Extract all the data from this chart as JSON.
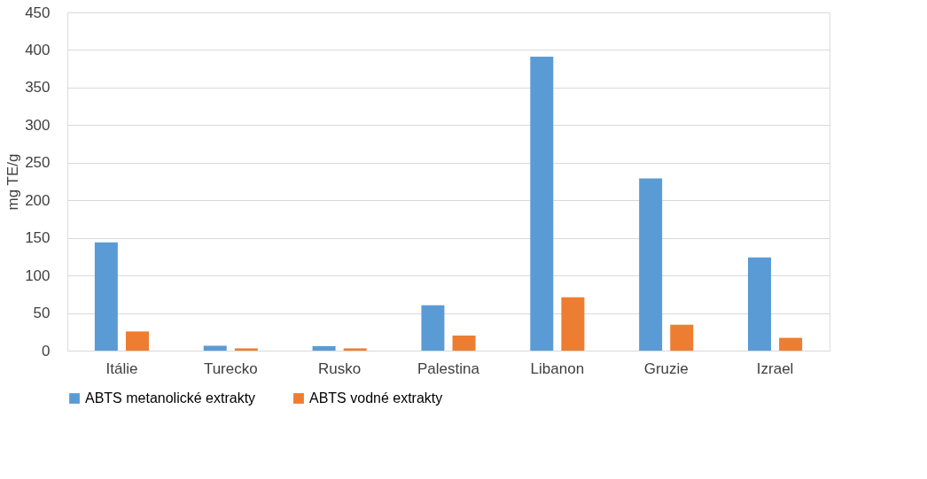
{
  "chart_data": {
    "type": "bar",
    "ylabel": "mg TE/g",
    "categories": [
      "Itálie",
      "Turecko",
      "Rusko",
      "Palestina",
      "Libanon",
      "Gruzie",
      "Izrael"
    ],
    "series": [
      {
        "name": "ABTS metanolické extrakty",
        "color": "#5b9bd5",
        "values": [
          144,
          6.5,
          6,
          60.5,
          391,
          229,
          124
        ]
      },
      {
        "name": "ABTS vodné extrakty",
        "color": "#ed7d31",
        "values": [
          25.5,
          3,
          3,
          20,
          71,
          34.5,
          17
        ]
      }
    ],
    "ylim": [
      0,
      450
    ],
    "yticks": [
      0,
      50,
      100,
      150,
      200,
      250,
      300,
      350,
      400,
      450
    ],
    "grid": "y",
    "legend": "bottom"
  }
}
